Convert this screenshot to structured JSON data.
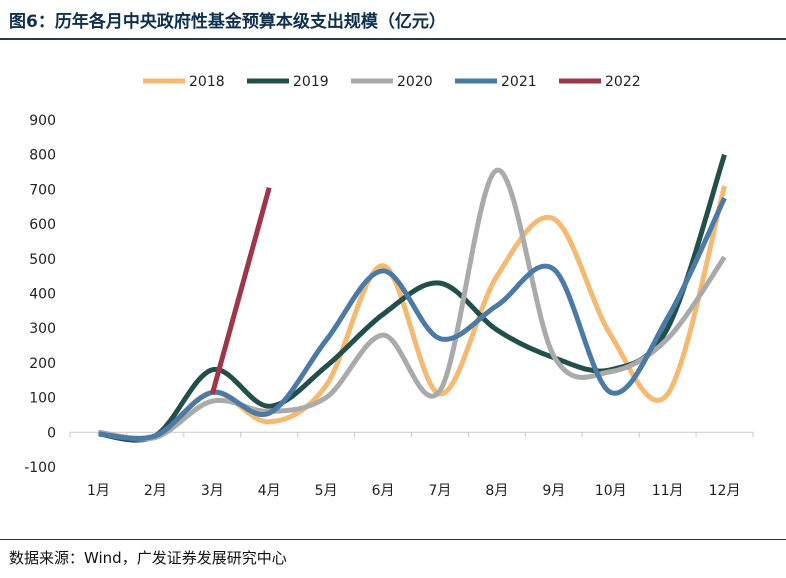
{
  "title": "图6：历年各月中央政府性基金预算本级支出规模（亿元）",
  "source": "数据来源：Wind，广发证券发展研究中心",
  "chart_data": {
    "type": "line",
    "title": "图6：历年各月中央政府性基金预算本级支出规模（亿元）",
    "xlabel": "",
    "ylabel": "",
    "categories": [
      "1月",
      "2月",
      "3月",
      "4月",
      "5月",
      "6月",
      "7月",
      "8月",
      "9月",
      "10月",
      "11月",
      "12月"
    ],
    "ylim": [
      -100,
      900
    ],
    "yticks": [
      -100,
      0,
      100,
      200,
      300,
      400,
      500,
      600,
      700,
      800,
      900
    ],
    "grid": false,
    "legend": "top",
    "series": [
      {
        "name": "2018",
        "color": "#f5b971",
        "values": [
          0,
          -10,
          115,
          30,
          135,
          480,
          110,
          450,
          615,
          280,
          110,
          710
        ]
      },
      {
        "name": "2019",
        "color": "#234f4a",
        "values": [
          -5,
          -10,
          180,
          75,
          190,
          340,
          430,
          295,
          215,
          180,
          300,
          800
        ]
      },
      {
        "name": "2020",
        "color": "#aaaaaa",
        "values": [
          0,
          -15,
          90,
          60,
          100,
          280,
          120,
          755,
          220,
          175,
          270,
          505
        ]
      },
      {
        "name": "2021",
        "color": "#4a7aa5",
        "values": [
          -5,
          -10,
          115,
          55,
          265,
          465,
          270,
          365,
          470,
          115,
          330,
          675
        ]
      },
      {
        "name": "2022",
        "color": "#9e3548",
        "values": [
          null,
          null,
          110,
          705,
          null,
          null,
          null,
          null,
          null,
          null,
          null,
          null
        ]
      }
    ]
  }
}
